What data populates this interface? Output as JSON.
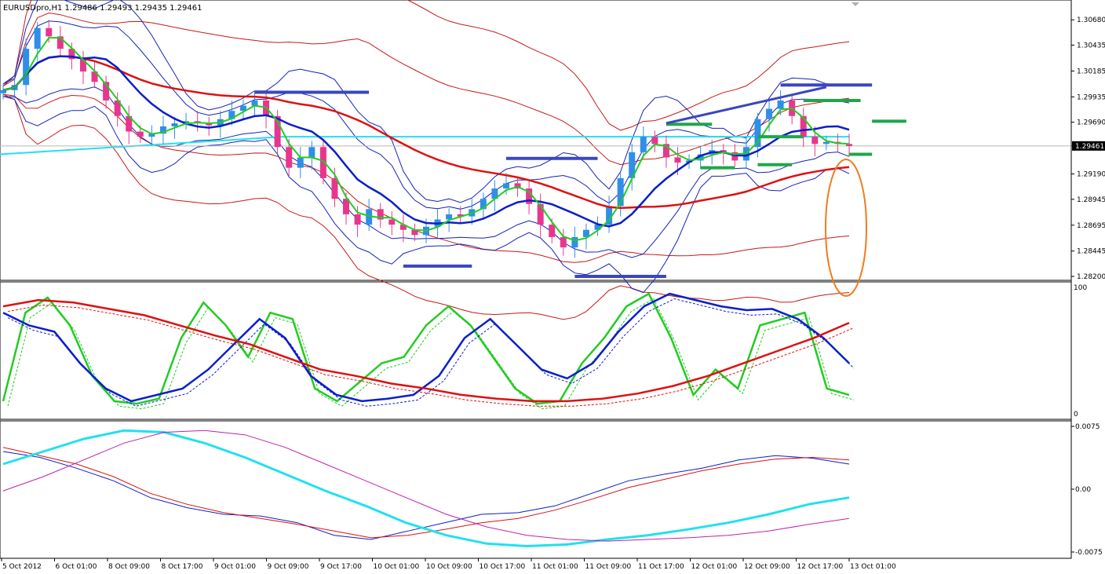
{
  "window": {
    "symbol_line": "EURUSDpro,H1  1.29486 1.29493 1.29435 1.29461"
  },
  "colors": {
    "bull_candle": "#2f8fe8",
    "bear_candle": "#e8368f",
    "fast_ma": "#22cc22",
    "mid_ma": "#0b1fc9",
    "slow_ma": "#dd1111",
    "cyan_line": "#22e0ee",
    "band_blue": "#1522b8",
    "band_red": "#c81818",
    "level_blue": "#3a46c0",
    "level_green": "#1fa64a",
    "highlight": "#f07b1d",
    "price_tag_bg": "#000000",
    "magenta": "#c020b0"
  },
  "chart_data": [
    {
      "panel": "price",
      "type": "line",
      "title": "EURUSDpro,H1",
      "ohlc_header": {
        "open": 1.29486,
        "high": 1.29493,
        "low": 1.29435,
        "close": 1.29461
      },
      "ylim": [
        1.282,
        1.3075
      ],
      "yticks": [
        "1.30680",
        "1.30435",
        "1.30185",
        "1.29935",
        "1.29690",
        "1.29461",
        "1.29190",
        "1.28945",
        "1.28695",
        "1.28445",
        "1.28200"
      ],
      "current_price": "1.29461",
      "close_series": [
        1.3,
        1.3005,
        1.304,
        1.306,
        1.3052,
        1.304,
        1.303,
        1.3018,
        1.3008,
        1.299,
        1.2975,
        1.296,
        1.2955,
        1.2958,
        1.2965,
        1.2968,
        1.297,
        1.2968,
        1.2966,
        1.2972,
        1.298,
        1.2985,
        1.299,
        1.2975,
        1.2945,
        1.2925,
        1.2935,
        1.2945,
        1.2915,
        1.2895,
        1.288,
        1.287,
        1.2885,
        1.2875,
        1.287,
        1.2865,
        1.286,
        1.2868,
        1.2875,
        1.288,
        1.2878,
        1.2885,
        1.2895,
        1.2905,
        1.291,
        1.2905,
        1.289,
        1.287,
        1.2858,
        1.2848,
        1.2858,
        1.2865,
        1.287,
        1.2888,
        1.2915,
        1.294,
        1.2955,
        1.2948,
        1.2935,
        1.293,
        1.2932,
        1.2938,
        1.2942,
        1.294,
        1.2932,
        1.2945,
        1.2972,
        1.2982,
        1.299,
        1.2975,
        1.2955,
        1.2948,
        1.295,
        1.2948,
        1.2946
      ],
      "horizontal_levels": [
        {
          "color": "level_blue",
          "y": 1.2998,
          "i0": 22,
          "i1": 32
        },
        {
          "color": "level_blue",
          "y": 1.2934,
          "i0": 44,
          "i1": 52
        },
        {
          "color": "level_blue",
          "y": 1.283,
          "i0": 35,
          "i1": 41
        },
        {
          "color": "level_blue",
          "y": 1.282,
          "i0": 50,
          "i1": 58
        },
        {
          "color": "level_blue",
          "y": 1.3005,
          "i0": 68,
          "i1": 76
        },
        {
          "color": "level_green",
          "y": 1.2967,
          "i0": 58,
          "i1": 62
        },
        {
          "color": "level_green",
          "y": 1.2955,
          "i0": 66,
          "i1": 70
        },
        {
          "color": "level_green",
          "y": 1.2925,
          "i0": 61,
          "i1": 64
        },
        {
          "color": "level_green",
          "y": 1.2928,
          "i0": 66,
          "i1": 69
        },
        {
          "color": "level_green",
          "y": 1.299,
          "i0": 70,
          "i1": 75
        },
        {
          "color": "level_green",
          "y": 1.297,
          "i0": 76,
          "i1": 79
        },
        {
          "color": "level_green",
          "y": 1.2938,
          "i0": 74,
          "i1": 76
        }
      ],
      "diagonal_line": {
        "color": "level_blue",
        "from": [
          58,
          1.2968
        ],
        "to": [
          72,
          1.3003
        ]
      }
    },
    {
      "panel": "stochastic",
      "type": "line",
      "ylim": [
        0,
        100
      ],
      "yticks": [
        "100",
        "0"
      ],
      "series": [
        {
          "color": "fast_ma",
          "values": [
            10,
            80,
            92,
            70,
            30,
            10,
            8,
            12,
            60,
            88,
            70,
            45,
            80,
            75,
            20,
            10,
            25,
            40,
            45,
            70,
            85,
            70,
            45,
            20,
            8,
            10,
            40,
            60,
            85,
            95,
            60,
            15,
            35,
            20,
            70,
            75,
            80,
            20,
            15
          ]
        },
        {
          "color": "mid_ma",
          "values": [
            80,
            70,
            65,
            40,
            20,
            10,
            15,
            20,
            35,
            55,
            75,
            60,
            30,
            15,
            10,
            12,
            15,
            30,
            60,
            75,
            55,
            35,
            28,
            40,
            65,
            85,
            95,
            90,
            85,
            82,
            83,
            75,
            60,
            40
          ]
        },
        {
          "color": "slow_ma",
          "values": [
            85,
            90,
            88,
            83,
            78,
            70,
            62,
            55,
            45,
            35,
            30,
            24,
            20,
            15,
            12,
            10,
            10,
            12,
            16,
            22,
            30,
            40,
            50,
            60,
            72
          ]
        }
      ]
    },
    {
      "panel": "oscillator",
      "type": "line",
      "ylim": [
        -0.0075,
        0.0075
      ],
      "yticks": [
        "0.0075",
        "0.00",
        "-0.0075"
      ],
      "series": [
        {
          "color": "mid_ma",
          "values": [
            0.0045,
            0.0038,
            0.0025,
            0.001,
            -0.001,
            -0.0022,
            -0.003,
            -0.0032,
            -0.004,
            -0.0055,
            -0.006,
            -0.005,
            -0.004,
            -0.003,
            -0.0028,
            -0.002,
            -0.0005,
            0.001,
            0.0018,
            0.0025,
            0.0035,
            0.004,
            0.0037,
            0.003
          ]
        },
        {
          "color": "slow_ma",
          "values": [
            0.005,
            0.004,
            0.003,
            0.0015,
            -0.0005,
            -0.0018,
            -0.0028,
            -0.0035,
            -0.0042,
            -0.005,
            -0.0058,
            -0.0055,
            -0.0048,
            -0.004,
            -0.0035,
            -0.0025,
            -0.0012,
            0.0002,
            0.0012,
            0.0022,
            0.003,
            0.0036,
            0.0038,
            0.0035
          ]
        },
        {
          "color": "cyan_line",
          "values": [
            0.003,
            0.0045,
            0.006,
            0.007,
            0.0068,
            0.0055,
            0.0038,
            0.0018,
            -0.0002,
            -0.002,
            -0.004,
            -0.0055,
            -0.0065,
            -0.0068,
            -0.0066,
            -0.006,
            -0.0055,
            -0.0048,
            -0.004,
            -0.003,
            -0.0018,
            -0.001
          ]
        },
        {
          "color": "magenta",
          "values": [
            -0.0002,
            0.0015,
            0.0035,
            0.0055,
            0.0068,
            0.007,
            0.0065,
            0.005,
            0.003,
            0.001,
            -0.001,
            -0.003,
            -0.0045,
            -0.0055,
            -0.006,
            -0.0062,
            -0.006,
            -0.0058,
            -0.0055,
            -0.005,
            -0.0042,
            -0.0035
          ]
        }
      ]
    }
  ],
  "x_axis": {
    "labels": [
      "5 Oct 2012",
      "6 Oct 01:00",
      "8 Oct 09:00",
      "8 Oct 17:00",
      "9 Oct 01:00",
      "9 Oct 09:00",
      "9 Oct 17:00",
      "10 Oct 01:00",
      "10 Oct 09:00",
      "10 Oct 17:00",
      "11 Oct 01:00",
      "11 Oct 09:00",
      "11 Oct 17:00",
      "12 Oct 01:00",
      "12 Oct 09:00",
      "12 Oct 17:00",
      "13 Oct 01:00"
    ]
  }
}
